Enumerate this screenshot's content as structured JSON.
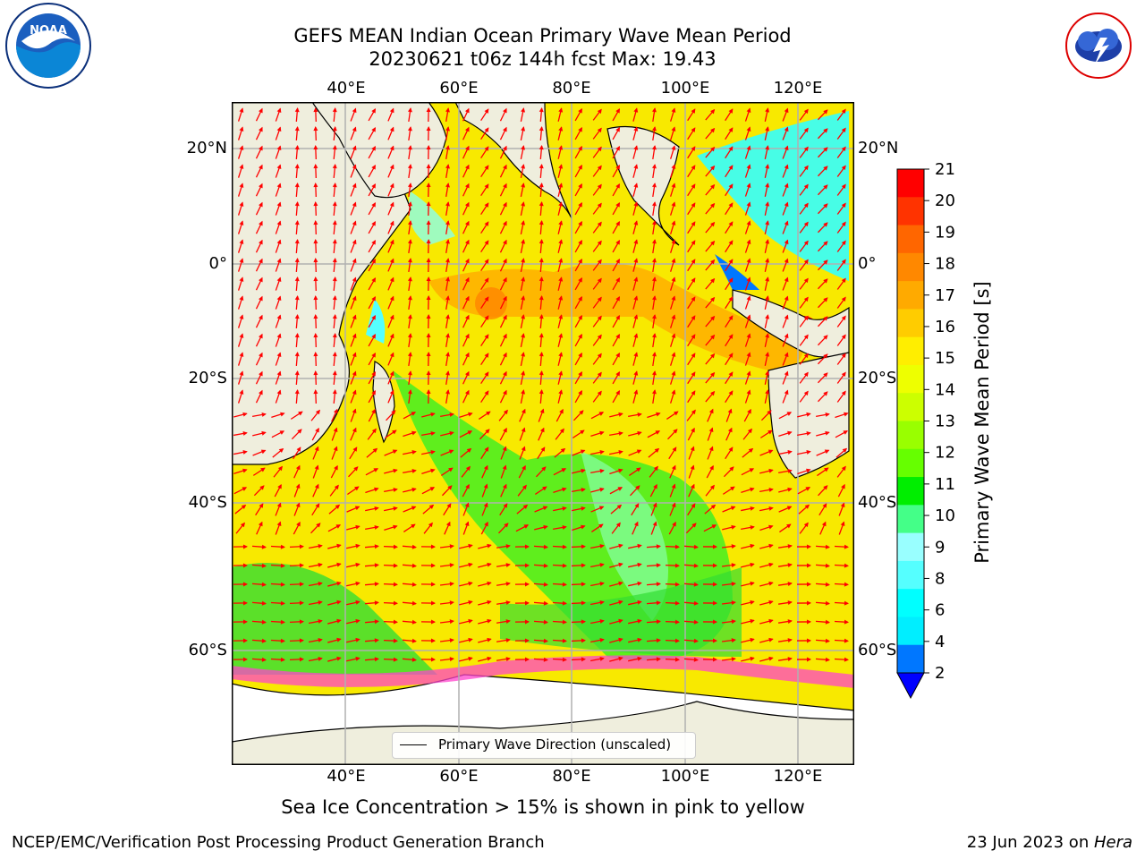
{
  "title_line1": "GEFS MEAN Indian Ocean Primary Wave Mean Period",
  "title_line2": "20230621 t06z 144h fcst   Max: 19.43",
  "top_axis_labels": [
    "40°E",
    "60°E",
    "80°E",
    "100°E",
    "120°E"
  ],
  "bottom_axis_labels": [
    "40°E",
    "60°E",
    "80°E",
    "100°E",
    "120°E"
  ],
  "left_axis_labels": [
    "20°N",
    "0°",
    "20°S",
    "40°S",
    "60°S"
  ],
  "right_axis_labels": [
    "20°N",
    "0°",
    "20°S",
    "40°S",
    "60°S"
  ],
  "colorbar": {
    "label": "Primary Wave Mean Period [s]",
    "ticks": [
      "21",
      "20",
      "19",
      "18",
      "17",
      "16",
      "15",
      "14",
      "13",
      "12",
      "11",
      "10",
      "9",
      "8",
      "6",
      "4",
      "2"
    ],
    "colors": [
      "#ff0000",
      "#ff3300",
      "#ff6600",
      "#ff8800",
      "#ffaa00",
      "#ffcc00",
      "#ffee00",
      "#eeff00",
      "#ccff00",
      "#99ff00",
      "#66ff00",
      "#00ee00",
      "#44ff88",
      "#99ffff",
      "#55ffff",
      "#00ffff",
      "#00eeff",
      "#0077ff"
    ]
  },
  "legend_label": "Primary Wave Direction (unscaled)",
  "subcaption": "Sea Ice Concentration > 15% is shown in pink to yellow",
  "footer_left": "NCEP/EMC/Verification Post Processing Product Generation Branch",
  "footer_right_prefix": "23 Jun 2023 on ",
  "footer_right_host": "Hera",
  "logos": {
    "left": "NOAA",
    "right": "NATIONAL WEATHER SERVICE"
  },
  "map_colors": {
    "land": "#efeedd",
    "ocean_main": "#ffee22",
    "arrow": "#ff0000"
  }
}
